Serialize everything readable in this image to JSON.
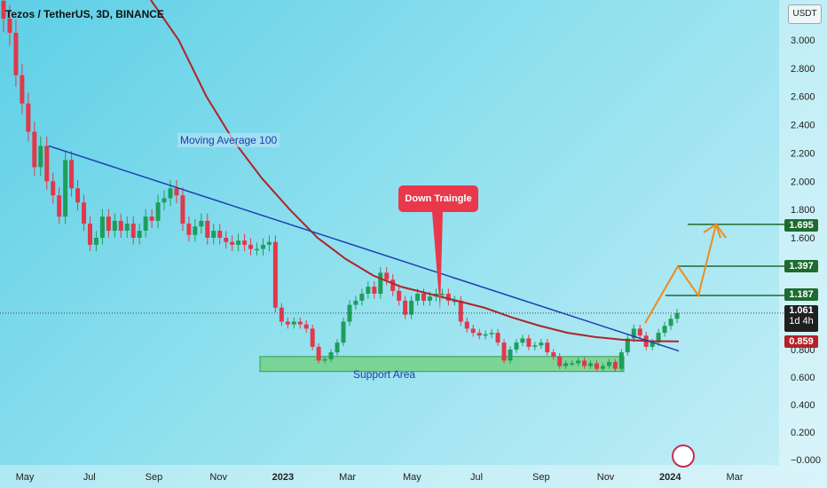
{
  "header": {
    "title": "Tezos / TetherUS, 3D, BINANCE",
    "currency_button": "USDT"
  },
  "annotations": {
    "moving_average": "Moving Average 100",
    "support_area": "Support Area",
    "down_triangle": "Down Traingle"
  },
  "price_tags": {
    "target_high": "1.695",
    "target_mid": "1.397",
    "target_low": "1.187",
    "current": "1.061",
    "countdown": "1d 4h",
    "ma_value": "0.859"
  },
  "colors": {
    "candle_up": "#1e9e5a",
    "candle_down": "#e0394b",
    "ma_line": "#b22228",
    "trend_line": "#1f3fb0",
    "projection": "#f08a1e",
    "target_line": "#1d6b2e",
    "support_fill": "#6fcf7a"
  },
  "chart_data": {
    "type": "candlestick",
    "title": "Tezos / TetherUS, 3D, BINANCE",
    "y_ticks": [
      "3.000",
      "2.800",
      "2.600",
      "2.400",
      "2.200",
      "2.000",
      "1.800",
      "1.600",
      "0.800",
      "0.600",
      "0.400",
      "0.200",
      "−0.000"
    ],
    "x_ticks": [
      "May",
      "Jul",
      "Sep",
      "Nov",
      "2023",
      "Mar",
      "May",
      "Jul",
      "Sep",
      "Nov",
      "2024",
      "Mar"
    ],
    "ylim": [
      -0.02,
      3.25
    ],
    "x_range_months": [
      "2022-04",
      "2024-03"
    ],
    "close_series": [
      3.15,
      3.05,
      2.75,
      2.55,
      2.35,
      2.1,
      2.25,
      2.0,
      1.9,
      1.75,
      2.15,
      1.95,
      1.85,
      1.7,
      1.55,
      1.6,
      1.75,
      1.65,
      1.72,
      1.65,
      1.7,
      1.6,
      1.65,
      1.75,
      1.72,
      1.85,
      1.88,
      1.95,
      1.9,
      1.7,
      1.62,
      1.68,
      1.72,
      1.6,
      1.65,
      1.6,
      1.57,
      1.55,
      1.58,
      1.55,
      1.52,
      1.52,
      1.55,
      1.57,
      1.1,
      1.0,
      0.98,
      1.0,
      0.98,
      0.95,
      0.82,
      0.72,
      0.73,
      0.78,
      0.85,
      1.0,
      1.12,
      1.15,
      1.2,
      1.25,
      1.2,
      1.35,
      1.3,
      1.22,
      1.15,
      1.05,
      1.15,
      1.2,
      1.15,
      1.18,
      1.2,
      1.2,
      1.15,
      1.15,
      1.0,
      0.95,
      0.92,
      0.9,
      0.91,
      0.92,
      0.85,
      0.72,
      0.8,
      0.85,
      0.88,
      0.82,
      0.83,
      0.85,
      0.78,
      0.75,
      0.68,
      0.7,
      0.7,
      0.72,
      0.68,
      0.7,
      0.66,
      0.68,
      0.71,
      0.66,
      0.78,
      0.88,
      0.95,
      0.9,
      0.82,
      0.85,
      0.92,
      0.97,
      1.02,
      1.061
    ],
    "moving_average_100": [
      3.4,
      3.0,
      2.6,
      2.28,
      2.02,
      1.8,
      1.6,
      1.45,
      1.33,
      1.25,
      1.2,
      1.15,
      1.1,
      1.03,
      0.97,
      0.92,
      0.89,
      0.87,
      0.86,
      0.859
    ],
    "support_area": [
      0.66,
      0.73
    ],
    "trendline": {
      "start": 2.25,
      "end": 0.79
    },
    "projection_path": [
      0.99,
      1.397,
      1.187,
      1.695,
      1.6
    ],
    "target_levels": [
      1.695,
      1.397,
      1.187
    ],
    "current_price": 1.061,
    "ma_price": 0.859
  }
}
